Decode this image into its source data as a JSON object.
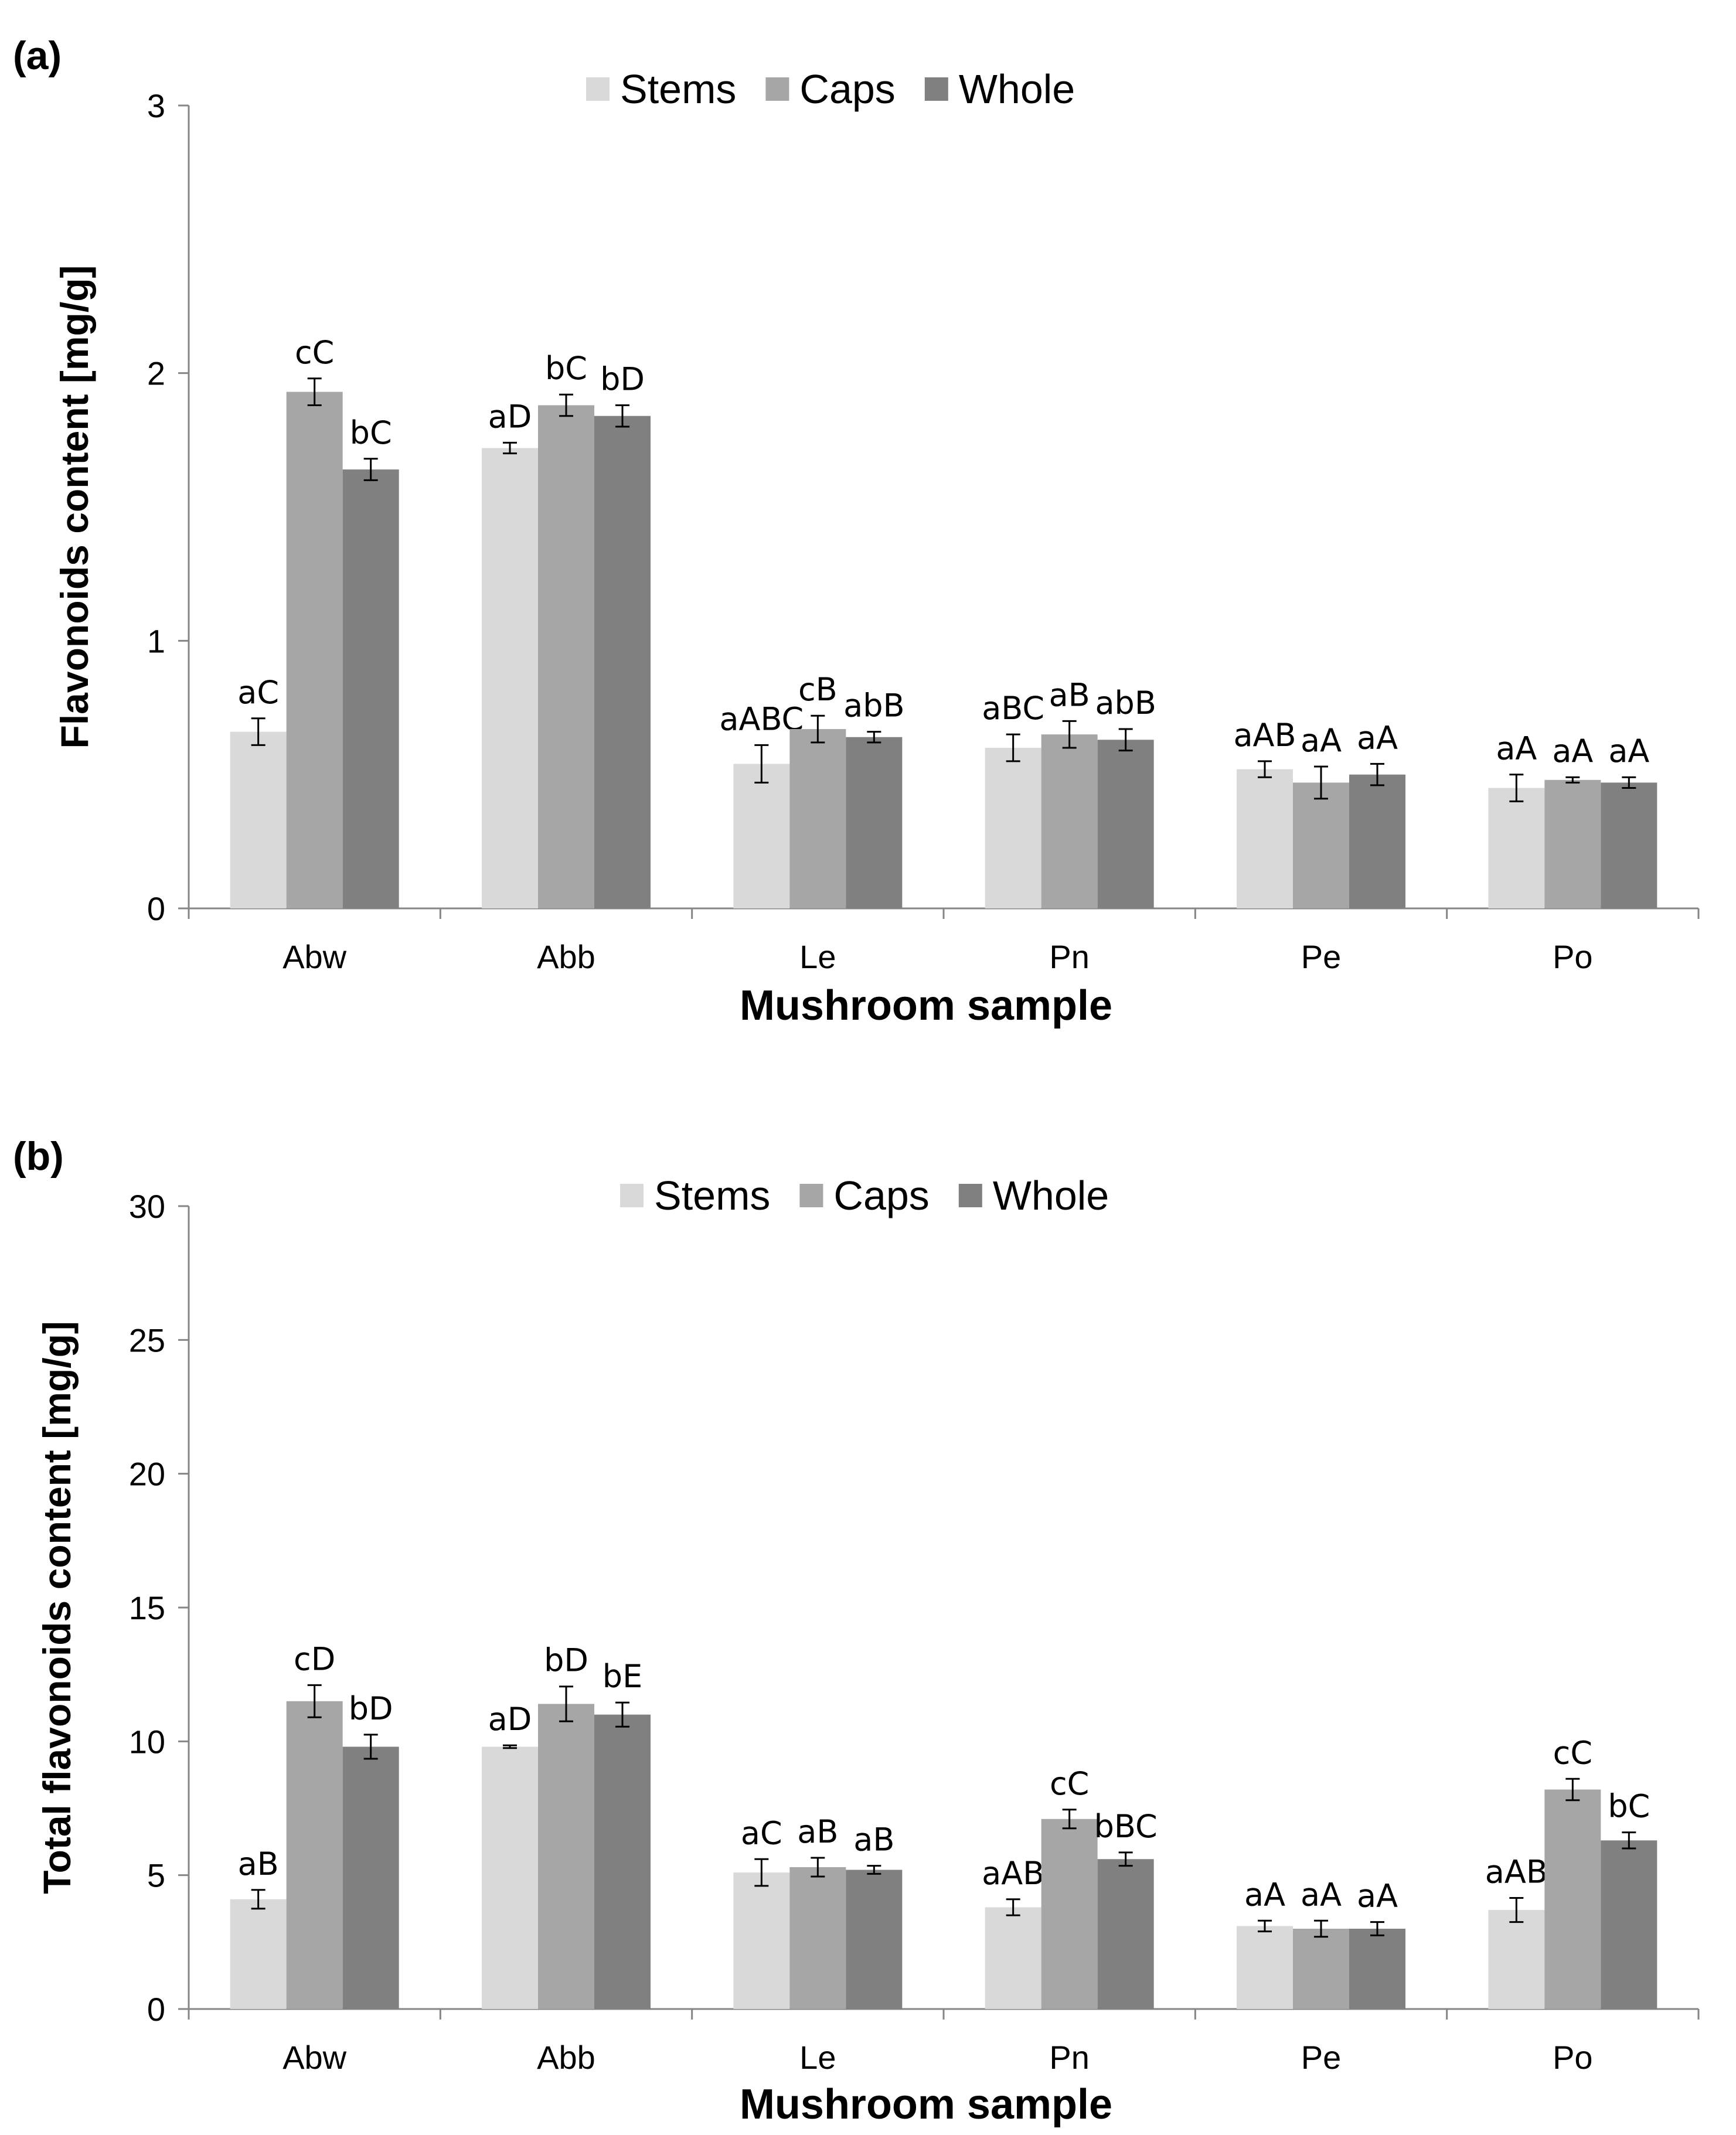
{
  "chart_data": [
    {
      "type": "bar",
      "panel_label": "(a)",
      "xlabel": "Mushroom sample",
      "ylabel": "Flavonoids content [mg/g]",
      "ylim": [
        0,
        3
      ],
      "yticks": [
        "0",
        "1",
        "2",
        "3"
      ],
      "ytick_values": [
        0,
        1,
        2,
        3
      ],
      "categories": [
        "Abw",
        "Abb",
        "Le",
        "Pn",
        "Pe",
        "Po"
      ],
      "legend_position": "top",
      "grid": false,
      "series": [
        {
          "name": "Stems",
          "color": "#d9d9d9",
          "values": [
            0.66,
            1.72,
            0.54,
            0.6,
            0.52,
            0.45
          ],
          "errors": [
            0.05,
            0.02,
            0.07,
            0.05,
            0.03,
            0.05
          ],
          "labels": [
            "aC",
            "aD",
            "aABC",
            "aBC",
            "aAB",
            "aA"
          ]
        },
        {
          "name": "Caps",
          "color": "#a6a6a6",
          "values": [
            1.93,
            1.88,
            0.67,
            0.65,
            0.47,
            0.48
          ],
          "errors": [
            0.05,
            0.04,
            0.05,
            0.05,
            0.06,
            0.01
          ],
          "labels": [
            "cC",
            "bC",
            "cB",
            "aB",
            "aA",
            "aA"
          ]
        },
        {
          "name": "Whole",
          "color": "#808080",
          "values": [
            1.64,
            1.84,
            0.64,
            0.63,
            0.5,
            0.47
          ],
          "errors": [
            0.04,
            0.04,
            0.02,
            0.04,
            0.04,
            0.02
          ],
          "labels": [
            "bC",
            "bD",
            "abB",
            "abB",
            "aA",
            "aA"
          ]
        }
      ]
    },
    {
      "type": "bar",
      "panel_label": "(b)",
      "xlabel": "Mushroom sample",
      "ylabel": "Total flavonoids content [mg/g]",
      "ylim": [
        0,
        30
      ],
      "yticks": [
        "0",
        "5",
        "10",
        "15",
        "20",
        "25",
        "30"
      ],
      "ytick_values": [
        0,
        5,
        10,
        15,
        20,
        25,
        30
      ],
      "categories": [
        "Abw",
        "Abb",
        "Le",
        "Pn",
        "Pe",
        "Po"
      ],
      "legend_position": "top",
      "grid": false,
      "series": [
        {
          "name": "Stems",
          "color": "#d9d9d9",
          "values": [
            4.1,
            9.8,
            5.1,
            3.8,
            3.1,
            3.7
          ],
          "errors": [
            0.35,
            0.05,
            0.5,
            0.3,
            0.2,
            0.45
          ],
          "labels": [
            "aB",
            "aD",
            "aC",
            "aAB",
            "aA",
            "aAB"
          ]
        },
        {
          "name": "Caps",
          "color": "#a6a6a6",
          "values": [
            11.5,
            11.4,
            5.3,
            7.1,
            3.0,
            8.2
          ],
          "errors": [
            0.6,
            0.65,
            0.35,
            0.35,
            0.3,
            0.4
          ],
          "labels": [
            "cD",
            "bD",
            "aB",
            "cC",
            "aA",
            "cC"
          ]
        },
        {
          "name": "Whole",
          "color": "#808080",
          "values": [
            9.8,
            11.0,
            5.2,
            5.6,
            3.0,
            6.3
          ],
          "errors": [
            0.45,
            0.45,
            0.15,
            0.25,
            0.25,
            0.3
          ],
          "labels": [
            "bD",
            "bE",
            "aB",
            "bBC",
            "aA",
            "bC"
          ]
        }
      ]
    }
  ]
}
